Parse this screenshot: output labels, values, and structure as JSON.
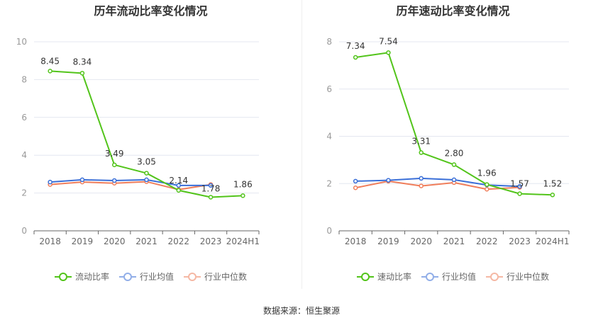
{
  "chart_data": [
    {
      "type": "line",
      "title": "历年流动比率变化情况",
      "categories": [
        "2018",
        "2019",
        "2020",
        "2021",
        "2022",
        "2023",
        "2024H1"
      ],
      "ylim": [
        0,
        10
      ],
      "yticks": [
        "0",
        "2",
        "4",
        "6",
        "8",
        "10"
      ],
      "series": [
        {
          "name": "流动比率",
          "color": "#52c41a",
          "values": [
            8.45,
            8.34,
            3.49,
            3.05,
            2.14,
            1.78,
            1.86
          ],
          "labels": [
            "8.45",
            "8.34",
            "3.49",
            "3.05",
            "2.14",
            "1.78",
            "1.86"
          ]
        },
        {
          "name": "行业均值",
          "color": "#3a6fd8",
          "values": [
            2.58,
            2.7,
            2.66,
            2.7,
            2.4,
            2.4,
            null
          ]
        },
        {
          "name": "行业中位数",
          "color": "#f07e5b",
          "values": [
            2.45,
            2.58,
            2.52,
            2.6,
            2.18,
            2.45,
            null
          ]
        }
      ],
      "legend": [
        {
          "name": "流动比率",
          "color": "#52c41a"
        },
        {
          "name": "行业均值",
          "color": "#91aee8"
        },
        {
          "name": "行业中位数",
          "color": "#f5b8a4"
        }
      ]
    },
    {
      "type": "line",
      "title": "历年速动比率变化情况",
      "categories": [
        "2018",
        "2019",
        "2020",
        "2021",
        "2022",
        "2023",
        "2024H1"
      ],
      "ylim": [
        0,
        8
      ],
      "yticks": [
        "0",
        "2",
        "4",
        "6",
        "8"
      ],
      "series": [
        {
          "name": "速动比率",
          "color": "#52c41a",
          "values": [
            7.34,
            7.54,
            3.31,
            2.8,
            1.96,
            1.57,
            1.52
          ],
          "labels": [
            "7.34",
            "7.54",
            "3.31",
            "2.80",
            "1.96",
            "1.57",
            "1.52"
          ]
        },
        {
          "name": "行业均值",
          "color": "#3a6fd8",
          "values": [
            2.1,
            2.14,
            2.22,
            2.16,
            1.94,
            1.88,
            null
          ]
        },
        {
          "name": "行业中位数",
          "color": "#f07e5b",
          "values": [
            1.82,
            2.1,
            1.9,
            2.04,
            1.76,
            1.84,
            null
          ]
        }
      ],
      "legend": [
        {
          "name": "速动比率",
          "color": "#52c41a"
        },
        {
          "name": "行业均值",
          "color": "#91aee8"
        },
        {
          "name": "行业中位数",
          "color": "#f5b8a4"
        }
      ]
    }
  ],
  "source": "数据来源：恒生聚源"
}
